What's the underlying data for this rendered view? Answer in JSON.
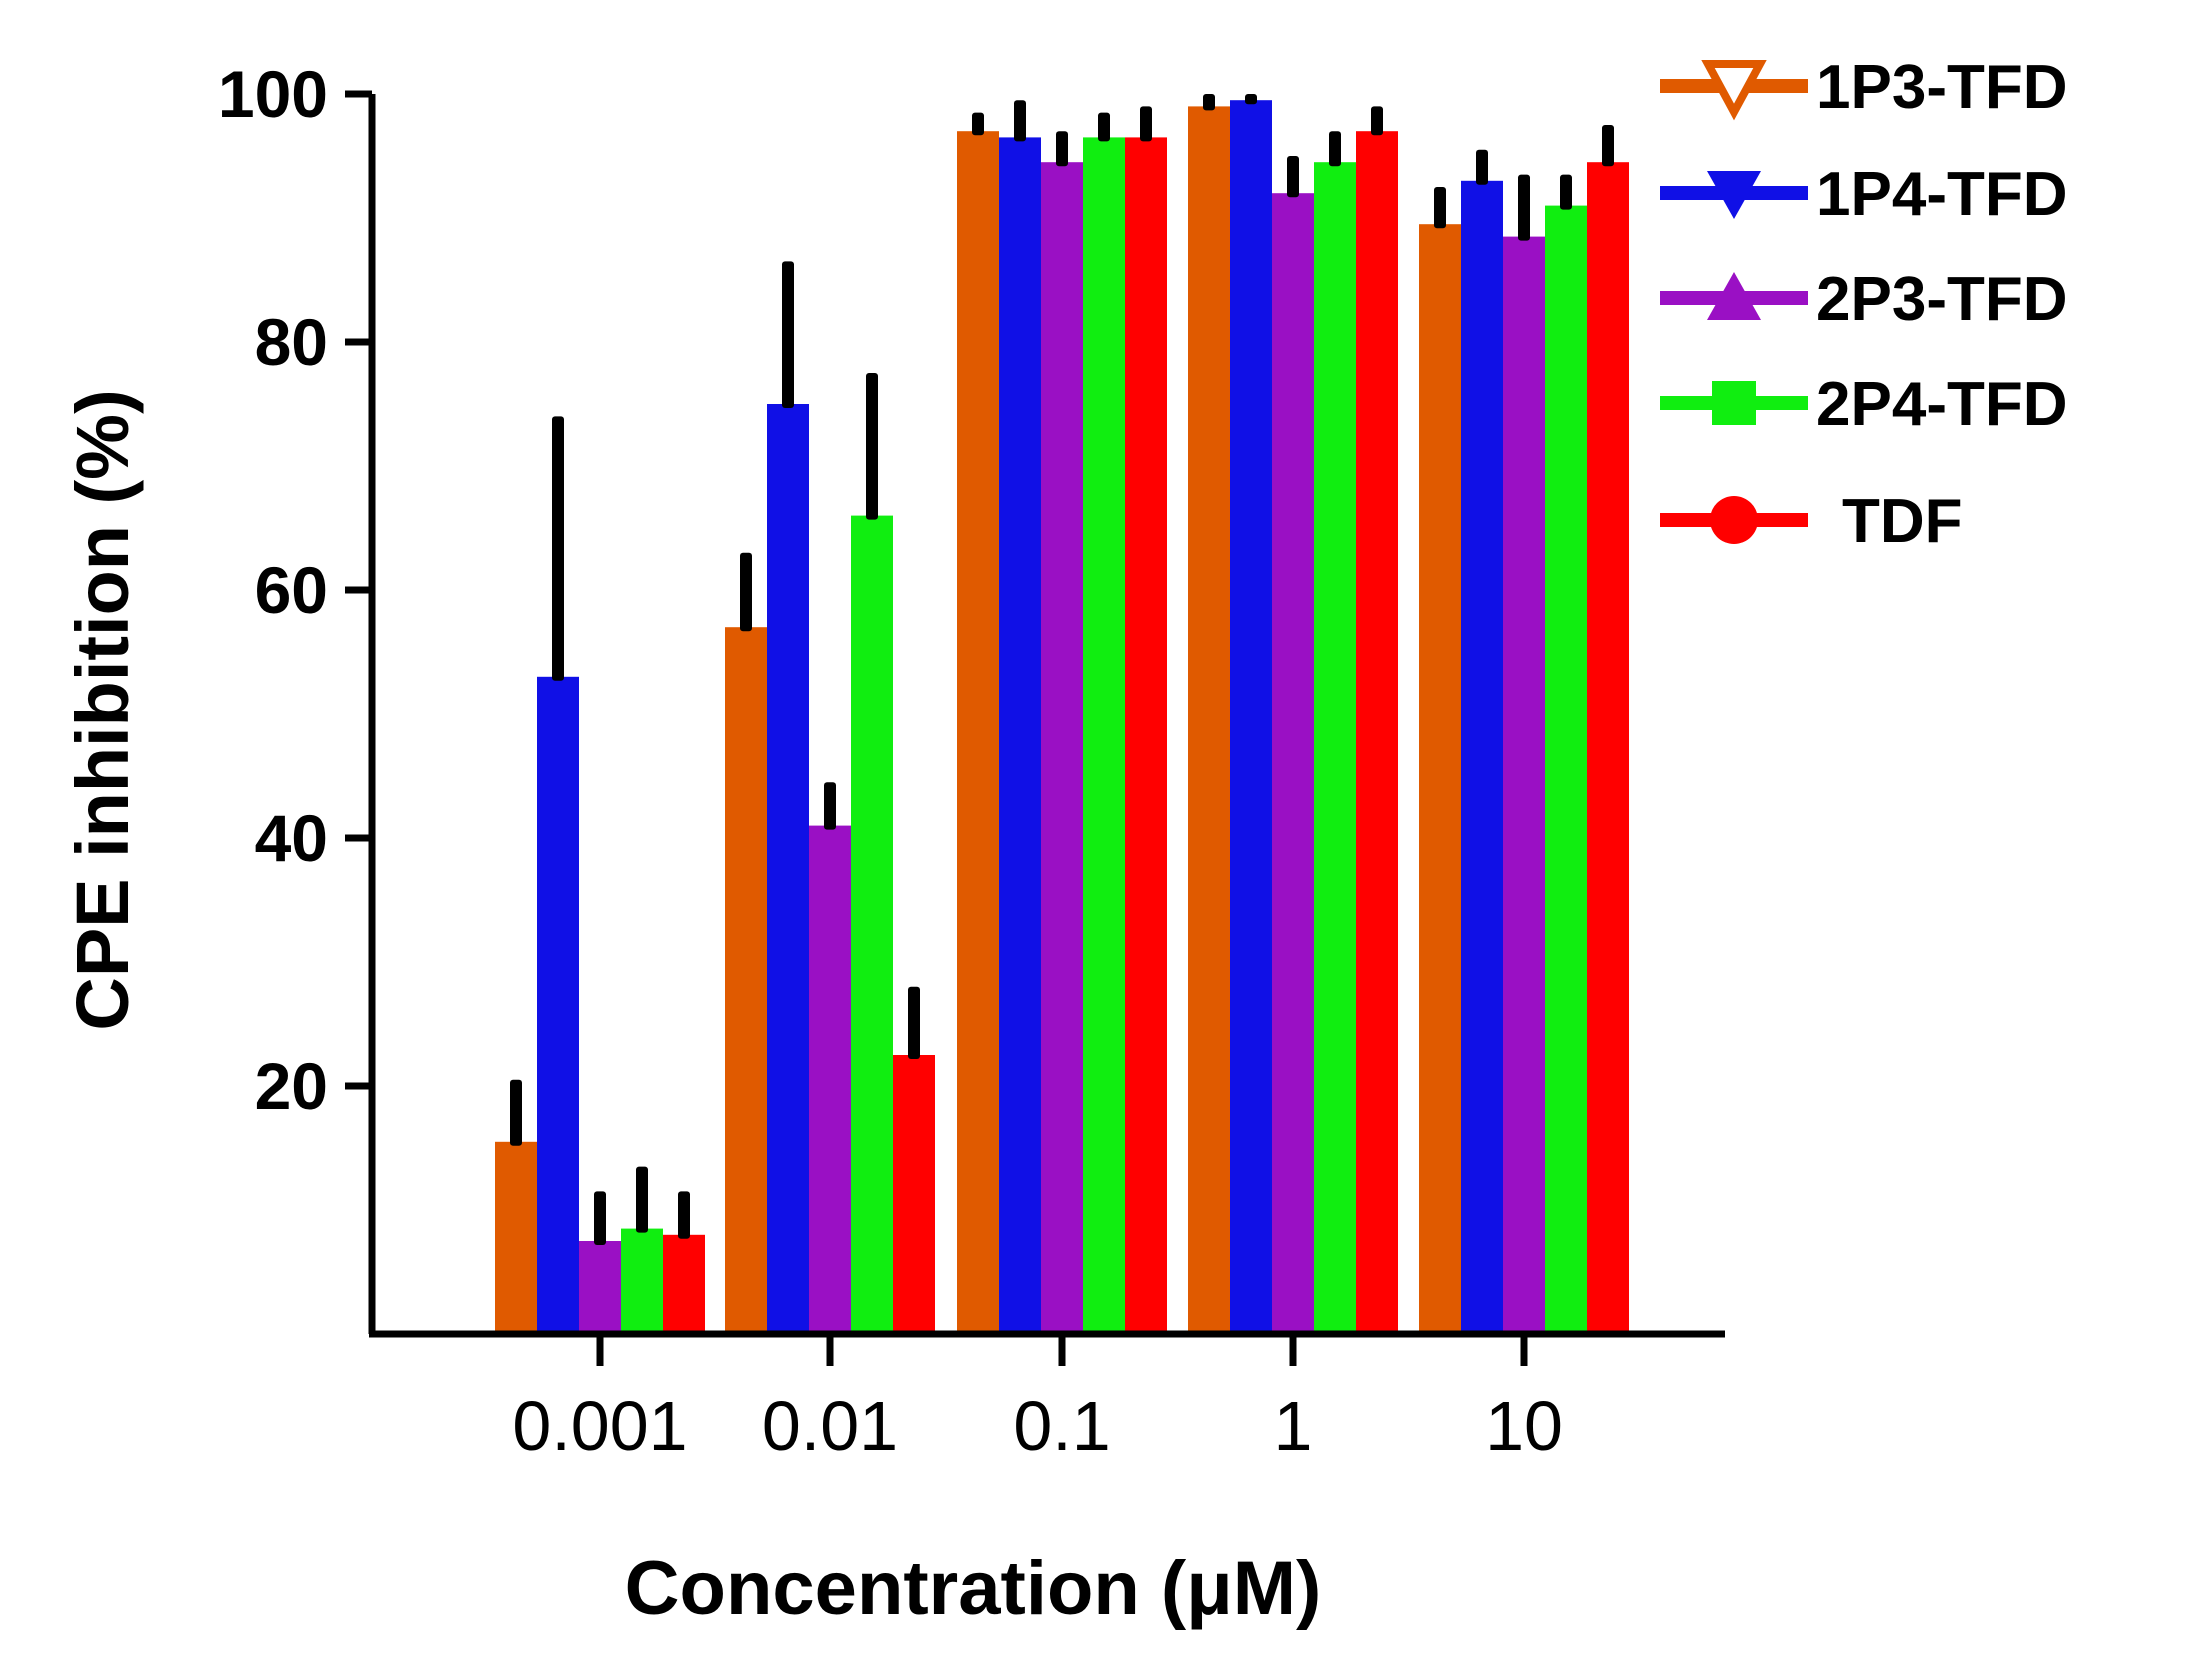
{
  "chart_data": {
    "type": "bar",
    "title": "",
    "xlabel": "Concentration (μM)",
    "ylabel": "CPE inhibition (%)",
    "ylim": [
      0,
      100
    ],
    "yticks": [
      "20",
      "40",
      "60",
      "80",
      "100"
    ],
    "categories": [
      "0.001",
      "0.01",
      "0.1",
      "1",
      "10"
    ],
    "legend_position": "top-right",
    "series": [
      {
        "name": "1P3-TFD",
        "color": "#e05a00",
        "marker": "triangle-down-open",
        "values": [
          15.5,
          57,
          97,
          99,
          89.5
        ],
        "errors": [
          5,
          6,
          1.5,
          1,
          3
        ]
      },
      {
        "name": "1P4-TFD",
        "color": "#1010e6",
        "marker": "triangle-down",
        "values": [
          53,
          75,
          96.5,
          99.5,
          93
        ],
        "errors": [
          21,
          11.5,
          3,
          0.5,
          2.5
        ]
      },
      {
        "name": "2P3-TFD",
        "color": "#9a10c4",
        "marker": "triangle-up",
        "values": [
          7.5,
          41,
          94.5,
          92,
          88.5
        ],
        "errors": [
          4,
          3.5,
          2.5,
          3,
          5
        ]
      },
      {
        "name": "2P4-TFD",
        "color": "#10ee10",
        "marker": "square",
        "values": [
          8.5,
          66,
          96.5,
          94.5,
          91
        ],
        "errors": [
          5,
          11.5,
          2,
          2.5,
          2.5
        ]
      },
      {
        "name": "TDF",
        "color": "#ff0000",
        "marker": "circle",
        "values": [
          8,
          22.5,
          96.5,
          97,
          94.5
        ],
        "errors": [
          3.5,
          5.5,
          2.5,
          2,
          3
        ]
      }
    ]
  }
}
